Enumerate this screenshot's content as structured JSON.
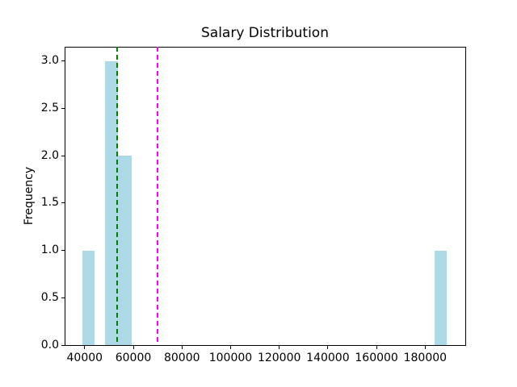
{
  "chart_data": {
    "type": "bar",
    "subtype": "histogram",
    "title": "Salary Distribution",
    "xlabel": "",
    "ylabel": "Frequency",
    "background_color": "#ffffff",
    "axis_color": "#000000",
    "bar_color": "#add8e6",
    "grid": false,
    "legend_position": "none",
    "xlim": [
      31760,
      196490
    ],
    "ylim": [
      0,
      3.15
    ],
    "x_ticks": [
      40000,
      60000,
      80000,
      100000,
      120000,
      140000,
      160000,
      180000
    ],
    "x_tick_labels": [
      "40000",
      "60000",
      "80000",
      "100000",
      "120000",
      "140000",
      "160000",
      "180000"
    ],
    "y_ticks": [
      0,
      0.5,
      1,
      1.5,
      2,
      2.5,
      3
    ],
    "y_tick_labels": [
      "0.0",
      "0.5",
      "1.0",
      "1.5",
      "2.0",
      "2.5",
      "3.0"
    ],
    "bars": [
      {
        "x0": 39000,
        "x1": 43900,
        "frequency": 1
      },
      {
        "x0": 48500,
        "x1": 53600,
        "frequency": 3
      },
      {
        "x0": 53600,
        "x1": 59200,
        "frequency": 2
      },
      {
        "x0": 183900,
        "x1": 188700,
        "frequency": 1
      }
    ],
    "vlines": [
      {
        "x": 53300,
        "color": "#008000",
        "style": "dashed",
        "name": "green-dashed-vline"
      },
      {
        "x": 70000,
        "color": "#ff00ff",
        "style": "dashed",
        "name": "magenta-dashed-vline"
      }
    ]
  }
}
